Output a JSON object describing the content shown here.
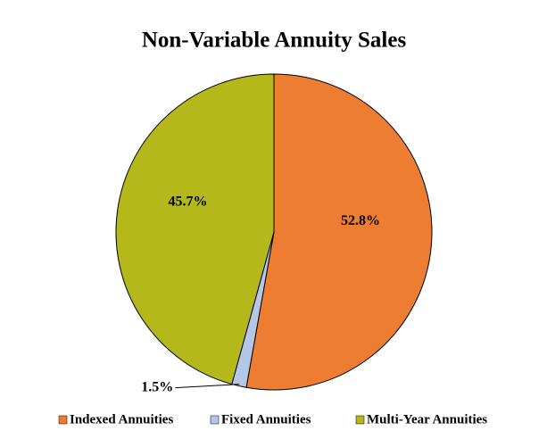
{
  "chart_data": {
    "type": "pie",
    "title": "Non-Variable Annuity Sales",
    "categories": [
      "Indexed Annuities",
      "Fixed Annuities",
      "Multi-Year Annuities"
    ],
    "values": [
      52.8,
      1.5,
      45.7
    ],
    "value_labels": [
      "52.8%",
      "1.5%",
      "45.7%"
    ],
    "colors": [
      "#ED7D31",
      "#B4C7E7",
      "#B5B81A"
    ],
    "legend": "bottom"
  }
}
